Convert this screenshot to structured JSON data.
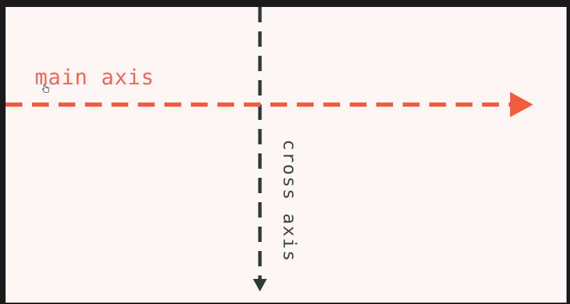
{
  "diagram": {
    "main_axis_label": "main axis",
    "cross_axis_label": "cross axis"
  },
  "colors": {
    "main_axis": "#f35b3f",
    "main_axis_text": "#f0675a",
    "cross_axis": "#2e3a37",
    "cross_axis_text": "#3e4a47",
    "background": "#fdf6f4",
    "frame": "#1b1b1b"
  }
}
